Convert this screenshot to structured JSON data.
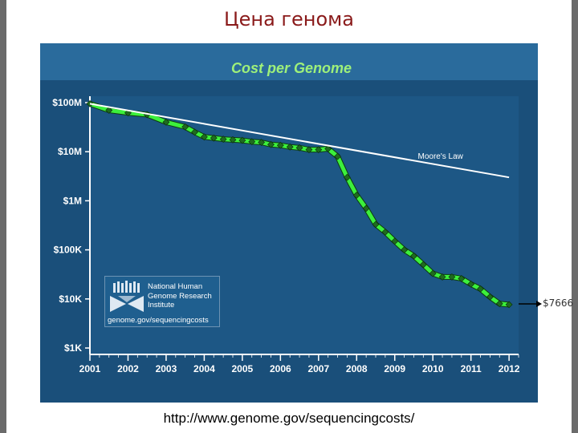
{
  "slide": {
    "title": "Цена генома",
    "source_url": "http://www.genome.gov/sequencingcosts/",
    "callout": "$7666"
  },
  "logo": {
    "lines": [
      "National Human",
      "Genome Research",
      "Institute"
    ],
    "url": "genome.gov/sequencingcosts"
  },
  "colors": {
    "panel": "#1a4f7a",
    "title_band": "#2a6b9c",
    "title_text": "#9ef07a",
    "cost_line": "#3cf03c",
    "cost_marker": "#1f6b1f",
    "moore_line": "#ffffff",
    "grid": "#3f79a3"
  },
  "chart_data": {
    "type": "line",
    "title": "Cost per Genome",
    "xlabel": "",
    "ylabel": "",
    "y_scale": "log",
    "ylim": [
      1000,
      100000000
    ],
    "xlim": [
      2001.0,
      2012.25
    ],
    "y_ticks": [
      {
        "value": 100000000,
        "label": "$100M"
      },
      {
        "value": 10000000,
        "label": "$10M"
      },
      {
        "value": 1000000,
        "label": "$1M"
      },
      {
        "value": 100000,
        "label": "$100K"
      },
      {
        "value": 10000,
        "label": "$10K"
      },
      {
        "value": 1000,
        "label": "$1K"
      }
    ],
    "x_ticks": [
      2001,
      2002,
      2003,
      2004,
      2005,
      2006,
      2007,
      2008,
      2009,
      2010,
      2011,
      2012
    ],
    "legend": "none",
    "grid": false,
    "series": [
      {
        "name": "",
        "style": "cost",
        "x": [
          2001.0,
          2001.5,
          2002.0,
          2002.5,
          2003.0,
          2003.5,
          2003.75,
          2004.0,
          2004.25,
          2004.5,
          2004.75,
          2005.0,
          2005.25,
          2005.5,
          2005.75,
          2006.0,
          2006.25,
          2006.5,
          2006.75,
          2007.0,
          2007.25,
          2007.5,
          2007.75,
          2008.0,
          2008.25,
          2008.5,
          2008.75,
          2009.0,
          2009.25,
          2009.5,
          2009.75,
          2010.0,
          2010.25,
          2010.5,
          2010.75,
          2011.0,
          2011.25,
          2011.5,
          2011.75,
          2012.0
        ],
        "y": [
          95000000,
          70000000,
          62000000,
          57000000,
          40000000,
          32000000,
          25000000,
          20000000,
          19000000,
          18000000,
          17500000,
          17000000,
          16000000,
          15500000,
          14000000,
          13500000,
          12500000,
          12000000,
          11000000,
          11000000,
          11500000,
          8000000,
          3000000,
          1300000,
          700000,
          330000,
          230000,
          150000,
          100000,
          75000,
          50000,
          33000,
          28000,
          28000,
          26000,
          20000,
          16000,
          11000,
          8000,
          7666
        ]
      },
      {
        "name": "Moore's Law",
        "style": "moore",
        "x": [
          2001.0,
          2012.0
        ],
        "y": [
          95000000,
          3000000
        ]
      }
    ]
  }
}
